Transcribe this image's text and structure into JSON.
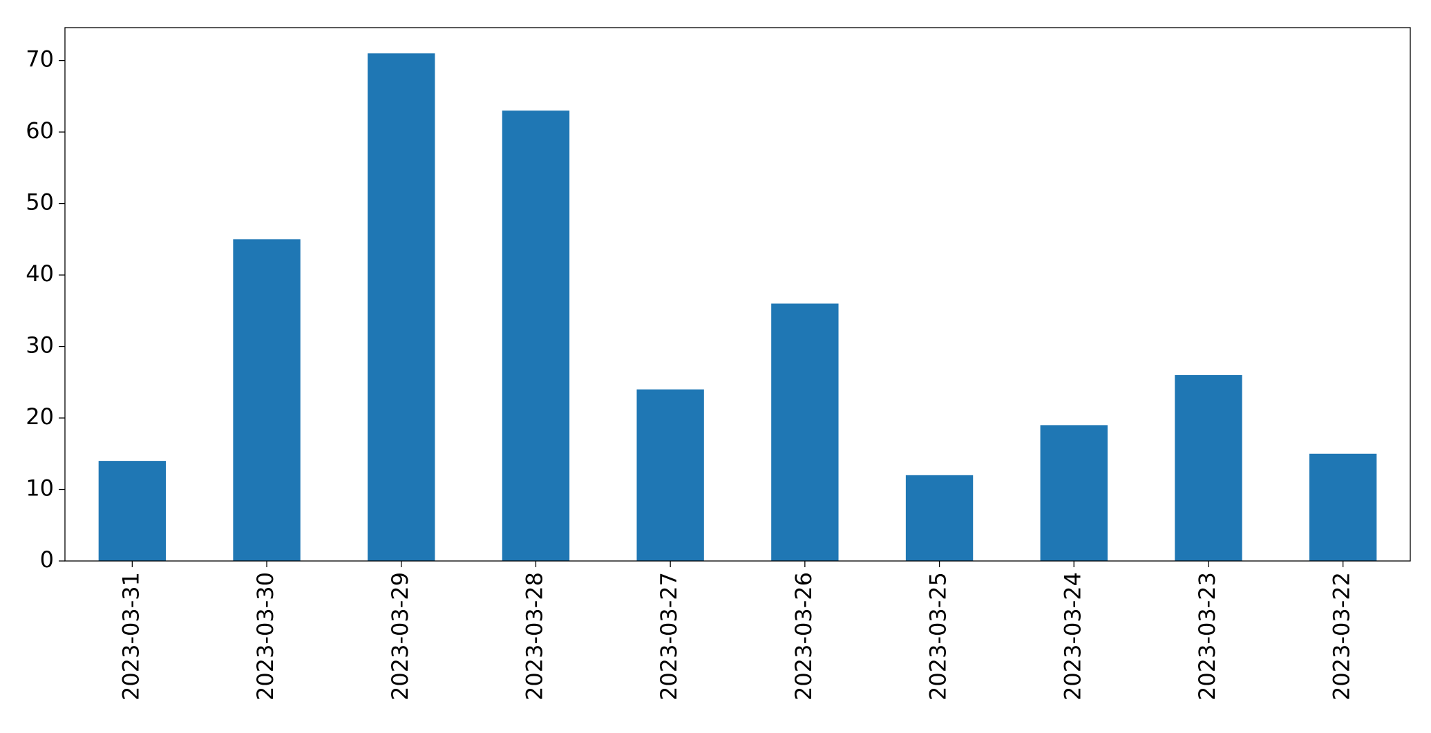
{
  "chart_data": {
    "type": "bar",
    "categories": [
      "2023-03-31",
      "2023-03-30",
      "2023-03-29",
      "2023-03-28",
      "2023-03-27",
      "2023-03-26",
      "2023-03-25",
      "2023-03-24",
      "2023-03-23",
      "2023-03-22"
    ],
    "values": [
      14,
      45,
      71,
      63,
      24,
      36,
      12,
      19,
      26,
      15
    ],
    "color": "#1f77b4",
    "ylim": [
      0,
      74.6
    ],
    "yticks": [
      0,
      10,
      20,
      30,
      40,
      50,
      60,
      70
    ],
    "grid": false
  }
}
